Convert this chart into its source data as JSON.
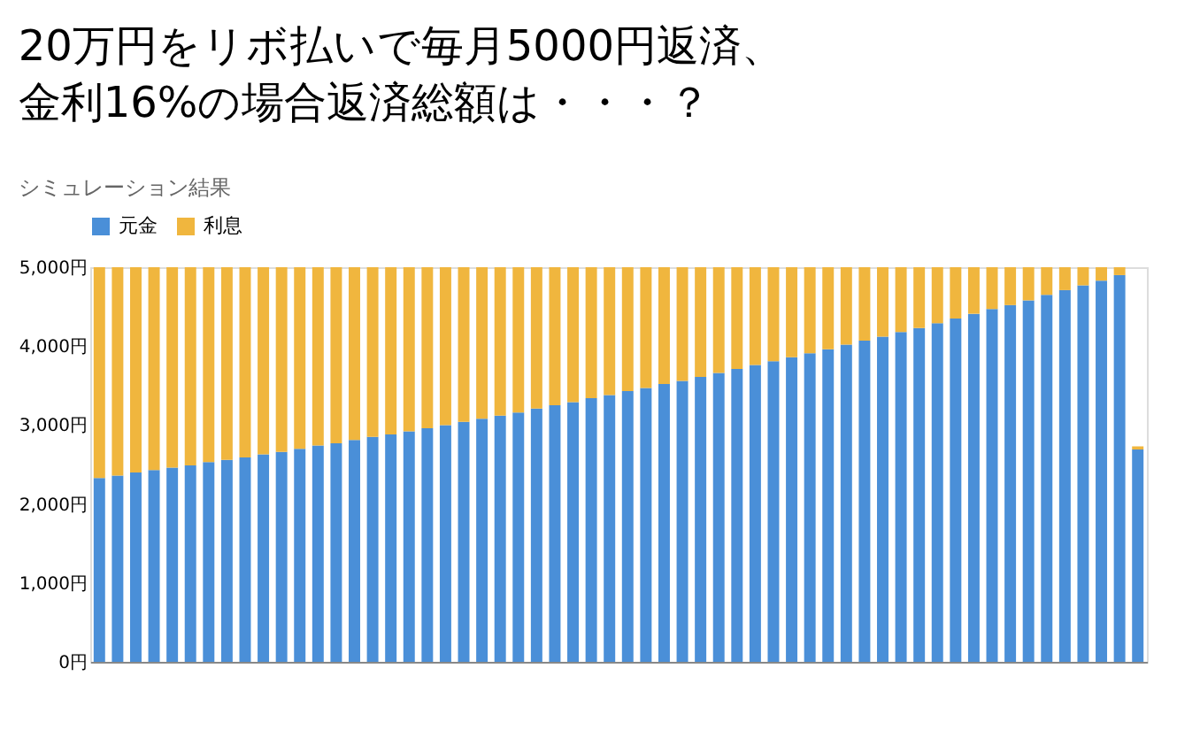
{
  "chart_data": {
    "type": "bar",
    "stacked": true,
    "title": "シミュレーション結果",
    "annotations": [
      "20万円をリボ払いで毎月5000円返済、",
      "金利16%の場合返済総額は・・・？"
    ],
    "categories": [
      null,
      null,
      null,
      null,
      null,
      null,
      null,
      null,
      null,
      null,
      null,
      null,
      null,
      null,
      null,
      null,
      null,
      null,
      null,
      null,
      null,
      null,
      null,
      null,
      null,
      null,
      null,
      null,
      null,
      null,
      null,
      null,
      null,
      null,
      null,
      null,
      null,
      null,
      null,
      null,
      null,
      null,
      null,
      null,
      null,
      null,
      null,
      null,
      null,
      null,
      null,
      null,
      null,
      null,
      null,
      null,
      null,
      null
    ],
    "series": [
      {
        "name": "元金",
        "color": "#4a8fd8",
        "values": [
          2330,
          2360,
          2400,
          2430,
          2460,
          2490,
          2530,
          2560,
          2590,
          2630,
          2660,
          2700,
          2740,
          2770,
          2810,
          2850,
          2880,
          2920,
          2960,
          3000,
          3040,
          3080,
          3120,
          3160,
          3210,
          3250,
          3290,
          3340,
          3380,
          3430,
          3470,
          3520,
          3560,
          3610,
          3660,
          3710,
          3760,
          3810,
          3860,
          3910,
          3960,
          4020,
          4070,
          4120,
          4180,
          4230,
          4290,
          4350,
          4410,
          4470,
          4520,
          4580,
          4650,
          4710,
          4770,
          4830,
          4900,
          2690
        ]
      },
      {
        "name": "利息",
        "color": "#f0b63e",
        "values": [
          2670,
          2640,
          2600,
          2570,
          2540,
          2510,
          2470,
          2440,
          2410,
          2370,
          2340,
          2300,
          2260,
          2230,
          2190,
          2150,
          2120,
          2080,
          2040,
          2000,
          1960,
          1920,
          1880,
          1840,
          1790,
          1750,
          1710,
          1660,
          1620,
          1570,
          1530,
          1480,
          1440,
          1390,
          1340,
          1290,
          1240,
          1190,
          1140,
          1090,
          1040,
          980,
          930,
          880,
          820,
          770,
          710,
          650,
          590,
          530,
          480,
          420,
          350,
          290,
          230,
          170,
          100,
          40
        ]
      }
    ],
    "ylim": [
      0,
      5000
    ],
    "yticks": [
      {
        "value": 0,
        "label": "0円"
      },
      {
        "value": 1000,
        "label": "1,000円"
      },
      {
        "value": 2000,
        "label": "2,000円"
      },
      {
        "value": 3000,
        "label": "3,000円"
      },
      {
        "value": 4000,
        "label": "4,000円"
      },
      {
        "value": 5000,
        "label": "5,000円"
      }
    ],
    "legend": "top left",
    "grid": false
  }
}
